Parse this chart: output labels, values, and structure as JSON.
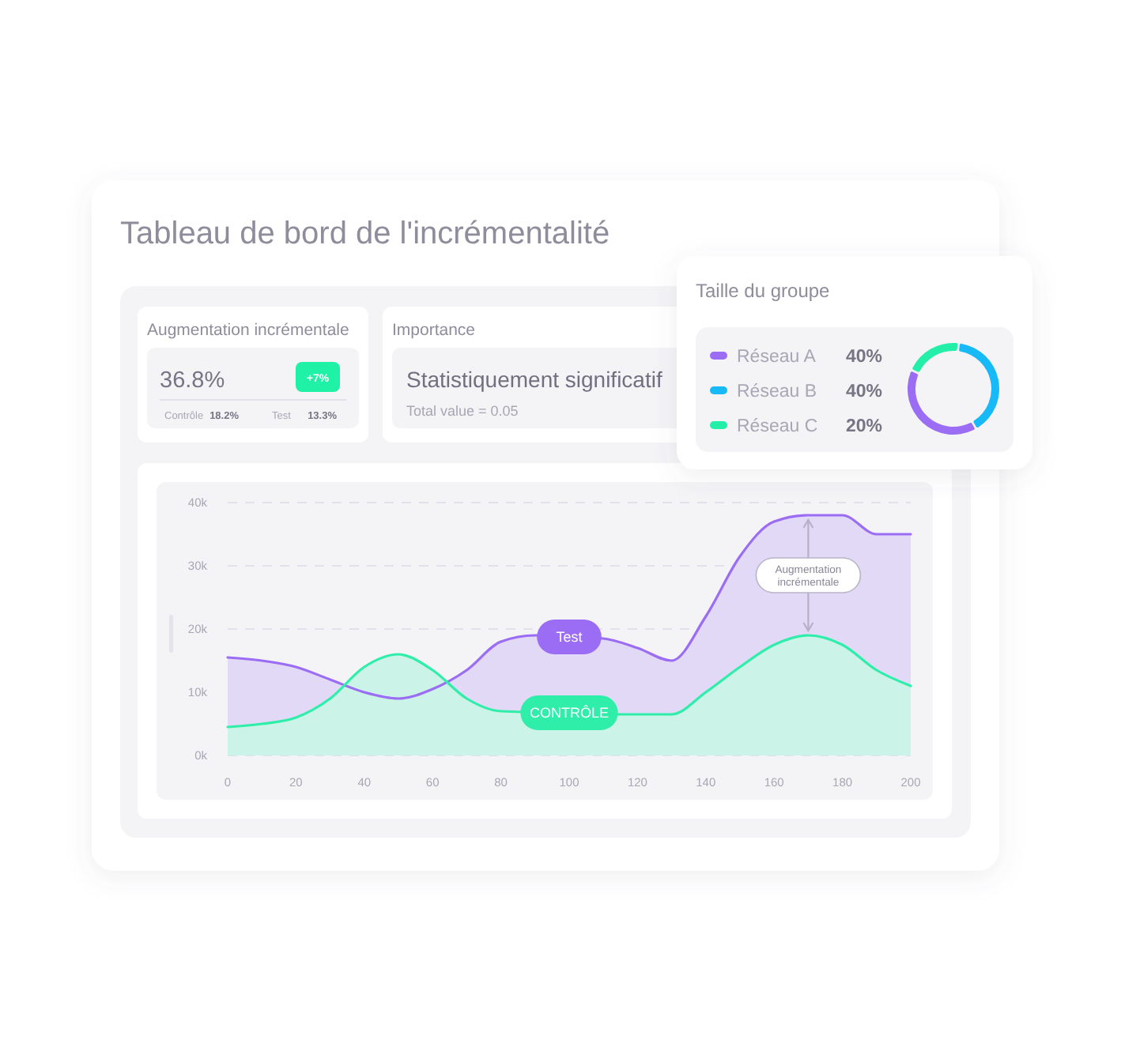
{
  "chart_data": [
    {
      "type": "other",
      "title": "Tableau de bord de l'incrémentalité"
    },
    {
      "type": "other",
      "title": "Augmentation incrémentale",
      "annotations": [
        "36.8%",
        "+7%",
        "Contrôle",
        "18.2%",
        "Test",
        "13.3%"
      ]
    },
    {
      "type": "other",
      "title": "Importance",
      "annotations": [
        "Statistiquement significatif",
        "Total value = 0.05"
      ]
    },
    {
      "type": "donut",
      "title": "Taille du groupe",
      "categories": [
        "Réseau A",
        "Réseau B",
        "Réseau C"
      ],
      "values": [
        40,
        40,
        20
      ],
      "colors": [
        "#9b6cf4",
        "#17b9f6",
        "#24efa9"
      ],
      "value_labels": [
        "40%",
        "40%",
        "20%"
      ],
      "legend": "left"
    },
    {
      "type": "area",
      "x": [
        0,
        10,
        20,
        30,
        40,
        50,
        60,
        70,
        80,
        90,
        100,
        110,
        120,
        130,
        140,
        150,
        160,
        170,
        180,
        190,
        200
      ],
      "series": [
        {
          "name": "Test",
          "color": "#9b6cf4",
          "values": [
            15500,
            15000,
            14000,
            12000,
            10000,
            9000,
            10500,
            13500,
            18000,
            19000,
            null,
            18500,
            17000,
            15000,
            22000,
            31500,
            37000,
            38000,
            38000,
            35000,
            35000
          ]
        },
        {
          "name": "CONTRÔLE",
          "color": "#2eeeaa",
          "values": [
            4500,
            5000,
            6000,
            9000,
            14000,
            16000,
            13500,
            9000,
            7000,
            null,
            null,
            null,
            6500,
            6500,
            10000,
            14000,
            17500,
            19000,
            17500,
            13500,
            11000
          ]
        }
      ],
      "xlim": [
        0,
        200
      ],
      "xticks": [
        0,
        20,
        40,
        60,
        80,
        100,
        120,
        140,
        160,
        180,
        200
      ],
      "ylim": [
        0,
        40000
      ],
      "yticks": [
        {
          "value": 0,
          "label": "0k"
        },
        {
          "value": 10000,
          "label": "10k"
        },
        {
          "value": 20000,
          "label": "20k"
        },
        {
          "value": 30000,
          "label": "30k"
        },
        {
          "value": 40000,
          "label": "40k"
        }
      ],
      "grid": "y",
      "annotations": [
        "Augmentation incrémentale"
      ]
    }
  ]
}
